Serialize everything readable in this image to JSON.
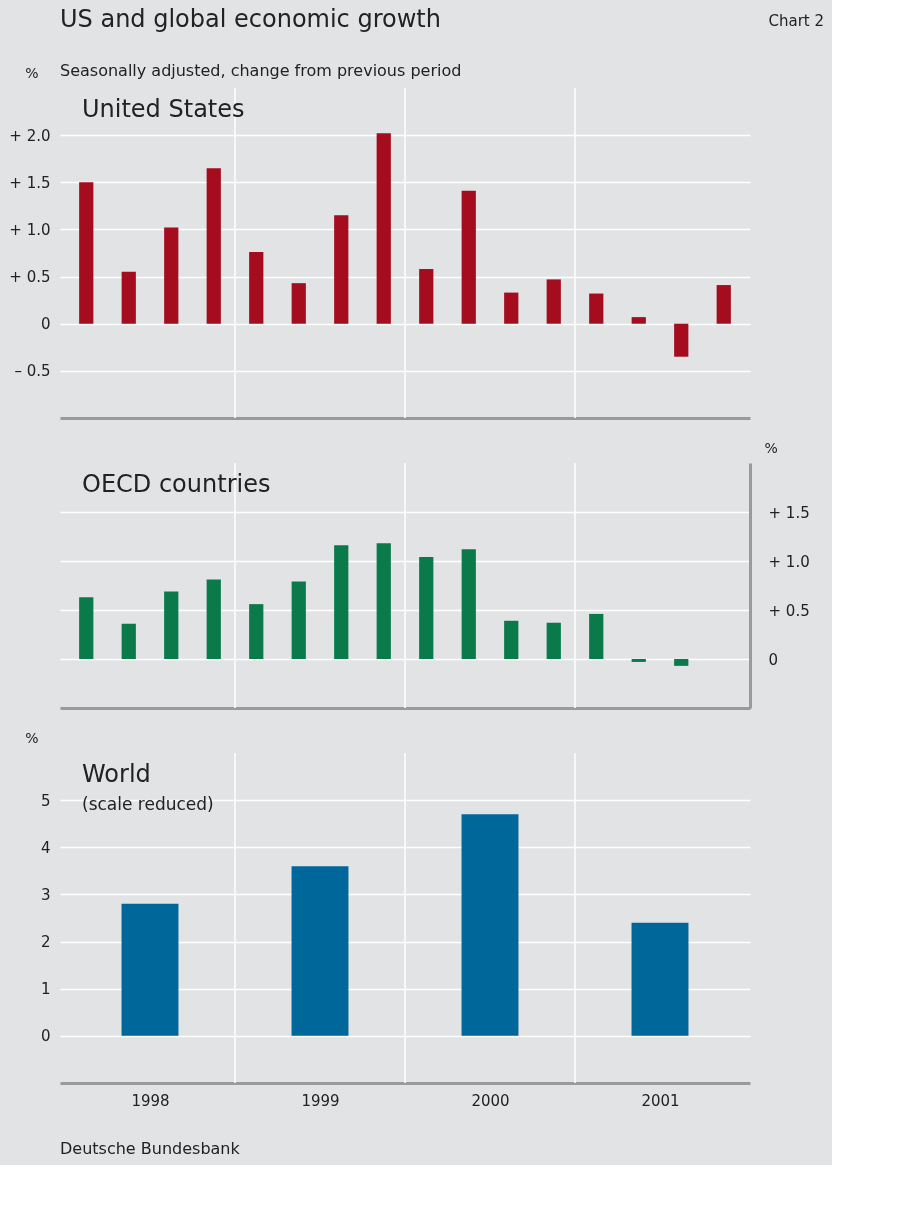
{
  "chart_data": [
    {
      "type": "bar",
      "title": "United States",
      "annotations": [
        "US and global economic growth",
        "Chart 2",
        "Seasonally adjusted, change from previous period"
      ],
      "ylabel": "%",
      "color": "#a50d1e",
      "categories": [
        null,
        null,
        null,
        null,
        null,
        null,
        null,
        null,
        null,
        null,
        null,
        null,
        null,
        null,
        null,
        null
      ],
      "values": [
        1.5,
        0.55,
        1.02,
        1.65,
        0.76,
        0.43,
        1.15,
        2.02,
        0.58,
        1.41,
        0.33,
        0.47,
        0.32,
        0.07,
        -0.35,
        0.41
      ],
      "ylim": [
        -1.0,
        2.5
      ],
      "yticks": [
        {
          "value": -0.5,
          "label": "– 0.5"
        },
        0,
        {
          "value": 0.5,
          "label": "+ 0.5"
        },
        {
          "value": 1.0,
          "label": "+ 1.0"
        },
        {
          "value": 1.5,
          "label": "+ 1.5"
        },
        {
          "value": 2.0,
          "label": "+ 2.0"
        }
      ],
      "grid": true
    },
    {
      "type": "bar",
      "title": "OECD countries",
      "y2label": "%",
      "categories": [
        null,
        null,
        null,
        null,
        null,
        null,
        null,
        null,
        null,
        null,
        null,
        null,
        null,
        null,
        null,
        null
      ],
      "series": [
        {
          "color": "#0a7a4a",
          "axis": "y2",
          "values": [
            0.63,
            0.36,
            0.69,
            0.81,
            0.56,
            0.79,
            1.16,
            1.18,
            1.04,
            1.12,
            0.39,
            0.37,
            0.46,
            -0.03,
            -0.07,
            null
          ]
        }
      ],
      "y2lim": [
        -0.5,
        2.0
      ],
      "y2ticks": [
        0,
        {
          "value": 0.5,
          "label": "+ 0.5"
        },
        {
          "value": 1.0,
          "label": "+ 1.0"
        },
        {
          "value": 1.5,
          "label": "+ 1.5"
        }
      ],
      "grid": true
    },
    {
      "type": "bar",
      "title": "World",
      "subtitle": "(scale reduced)",
      "annotations": [
        "Deutsche Bundesbank"
      ],
      "ylabel": "%",
      "color": "#00679b",
      "categories": [
        "1998",
        "1999",
        "2000",
        "2001"
      ],
      "values": [
        2.8,
        3.6,
        4.7,
        2.4
      ],
      "ylim": [
        -1,
        6
      ],
      "yticks": [
        0,
        1,
        2,
        3,
        4,
        5
      ],
      "grid": true
    }
  ]
}
